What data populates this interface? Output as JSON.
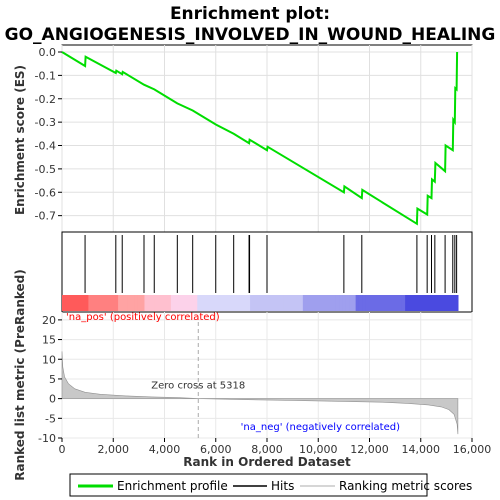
{
  "title_line1": "Enrichment plot:",
  "title_line2": "GO_ANGIOGENESIS_INVOLVED_IN_WOUND_HEALING",
  "es_ylabel": "Enrichment score (ES)",
  "metric_ylabel": "Ranked list metric (PreRanked)",
  "xlabel": "Rank in Ordered Dataset",
  "pos_label": "'na_pos' (positively correlated)",
  "neg_label": "'na_neg' (negatively correlated)",
  "zero_cross_label": "Zero cross at 5318",
  "legend": {
    "profile": "Enrichment profile",
    "hits": "Hits",
    "ranking": "Ranking metric scores"
  },
  "colors": {
    "profile": "#00ee00",
    "pos_label": "#ff0000",
    "neg_label": "#0000ff"
  },
  "chart_data": {
    "type": "line",
    "x_range": [
      0,
      16000
    ],
    "x_ticks": [
      "0",
      "2,000",
      "4,000",
      "6,000",
      "8,000",
      "10,000",
      "12,000",
      "14,000",
      "16,000"
    ],
    "x_tick_values": [
      0,
      2000,
      4000,
      6000,
      8000,
      10000,
      12000,
      14000,
      16000
    ],
    "es_ylim": [
      -0.77,
      0.03
    ],
    "es_ticks": [
      "0.0",
      "-0.1",
      "-0.2",
      "-0.3",
      "-0.4",
      "-0.5",
      "-0.6",
      "-0.7"
    ],
    "es_tick_values": [
      0.0,
      -0.1,
      -0.2,
      -0.3,
      -0.4,
      -0.5,
      -0.6,
      -0.7
    ],
    "metric_ylim": [
      -10,
      22
    ],
    "metric_ticks": [
      "20",
      "15",
      "10",
      "5",
      "0",
      "-5",
      "-10"
    ],
    "metric_tick_values": [
      20,
      15,
      10,
      5,
      0,
      -5,
      -10
    ],
    "zero_cross": 5318,
    "dataset_size": 15450,
    "enrichment_profile": {
      "x": [
        0,
        900,
        920,
        2100,
        2120,
        2350,
        2370,
        3200,
        3600,
        4500,
        5100,
        6000,
        6700,
        7300,
        7320,
        8000,
        8020,
        11000,
        11020,
        11700,
        11720,
        13850,
        13870,
        14250,
        14270,
        14420,
        14440,
        14550,
        14570,
        14950,
        14970,
        15250,
        15270,
        15330,
        15350,
        15400,
        15420
      ],
      "y": [
        0.0,
        -0.06,
        -0.02,
        -0.09,
        -0.08,
        -0.095,
        -0.085,
        -0.14,
        -0.16,
        -0.22,
        -0.25,
        -0.31,
        -0.35,
        -0.39,
        -0.375,
        -0.42,
        -0.405,
        -0.6,
        -0.575,
        -0.625,
        -0.59,
        -0.735,
        -0.67,
        -0.695,
        -0.615,
        -0.625,
        -0.545,
        -0.555,
        -0.475,
        -0.51,
        -0.4,
        -0.42,
        -0.29,
        -0.3,
        -0.155,
        -0.16,
        0.0
      ]
    },
    "hits": [
      900,
      2100,
      2350,
      3200,
      3600,
      4500,
      5100,
      6000,
      6700,
      7300,
      7320,
      8000,
      11000,
      11700,
      13850,
      14250,
      14420,
      14550,
      14950,
      15250,
      15330,
      15400
    ],
    "ranking_metric": {
      "x": [
        0,
        30,
        100,
        250,
        500,
        900,
        1500,
        2500,
        3500,
        4500,
        5318,
        7000,
        9000,
        11000,
        12500,
        13500,
        14300,
        14800,
        15100,
        15300,
        15420,
        15450
      ],
      "y": [
        12,
        8,
        5.5,
        3.8,
        2.5,
        1.6,
        1.1,
        0.7,
        0.45,
        0.25,
        0.0,
        -0.25,
        -0.45,
        -0.7,
        -0.9,
        -1.2,
        -1.6,
        -2.1,
        -2.8,
        -4,
        -6.5,
        -9
      ]
    }
  }
}
